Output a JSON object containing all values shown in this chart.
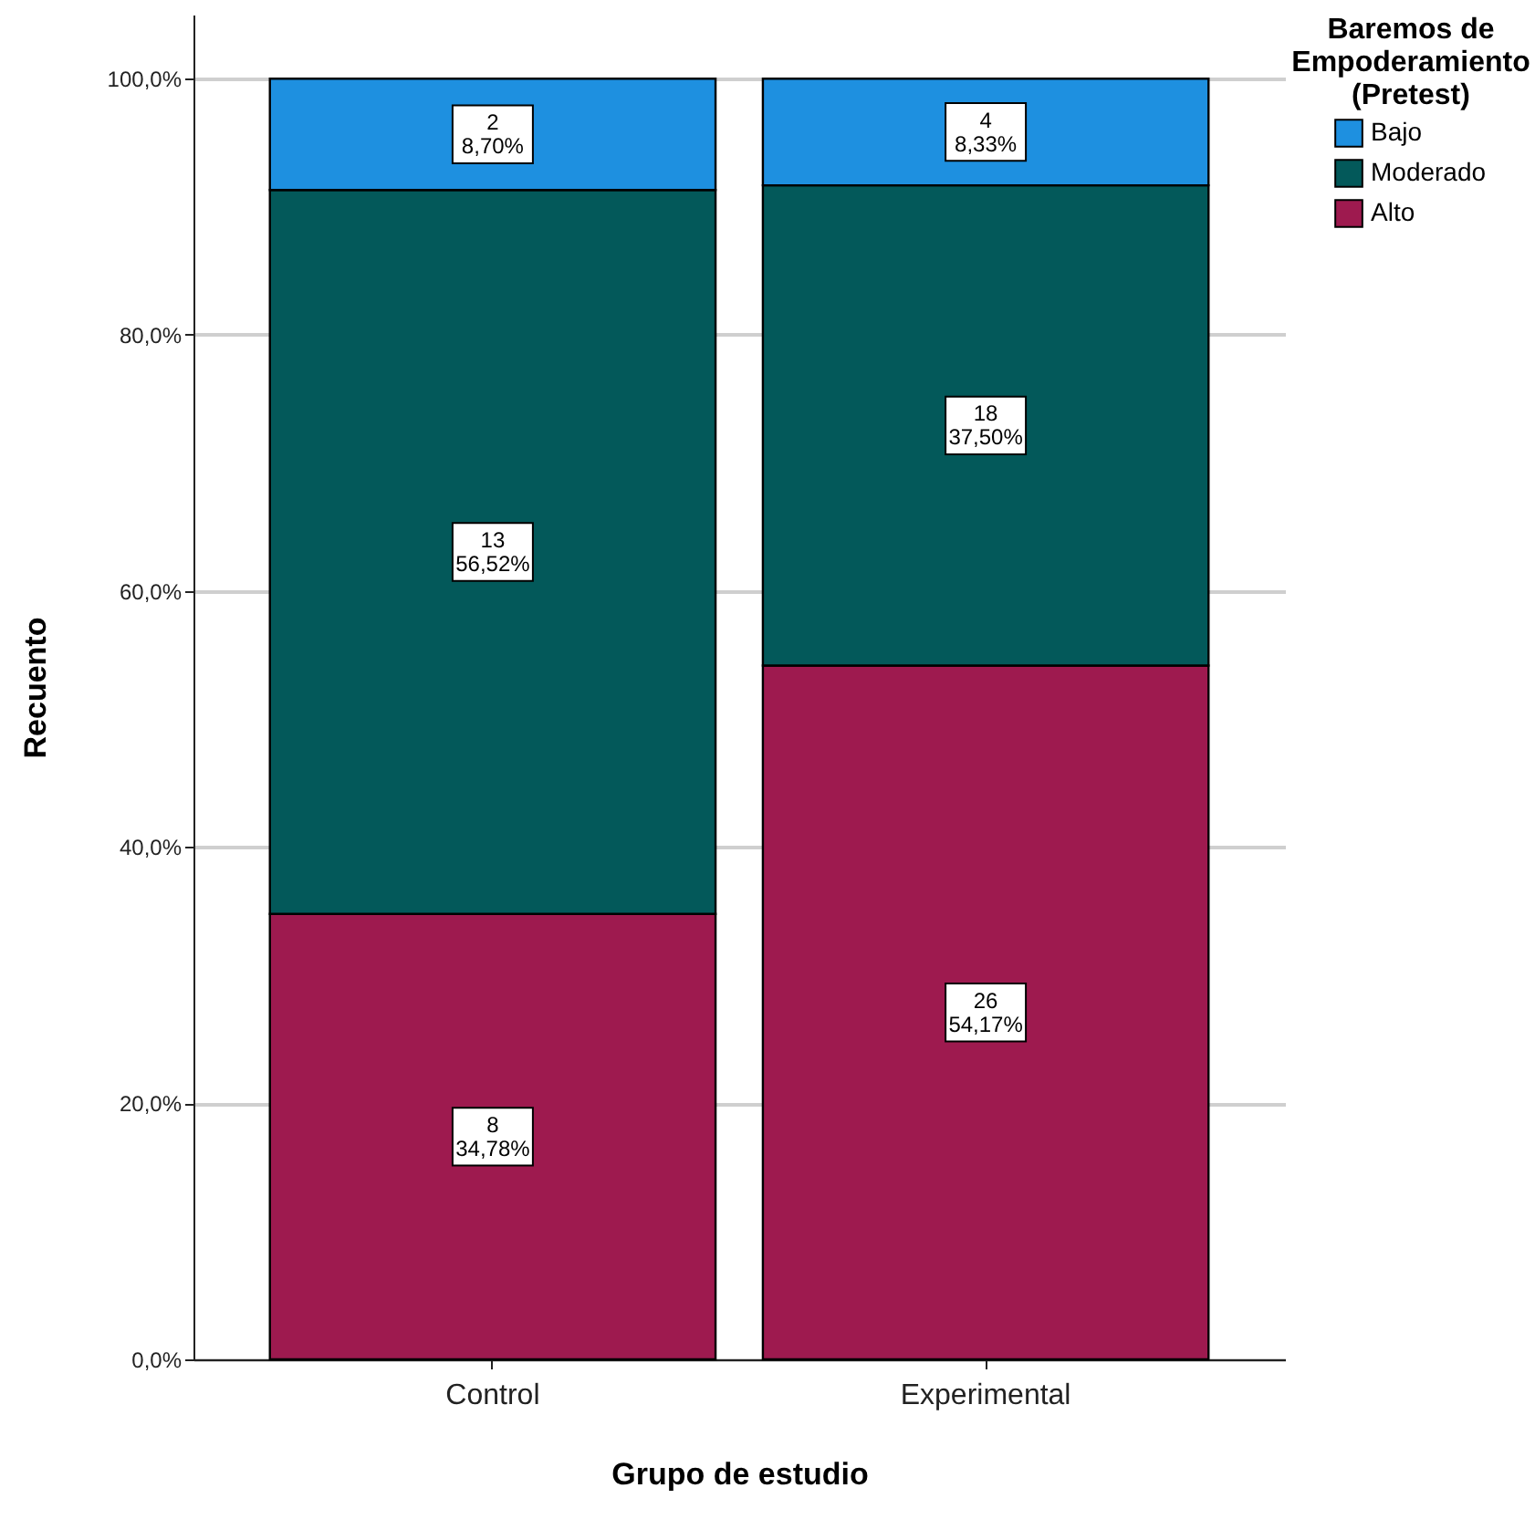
{
  "chart_data": {
    "type": "bar",
    "stacked": true,
    "categories": [
      "Control",
      "Experimental"
    ],
    "series": [
      {
        "name": "Alto",
        "color": "#9e1a4f",
        "values": [
          34.78,
          54.17
        ],
        "value_labels": [
          "8\n34,78%",
          "26\n54,17%"
        ]
      },
      {
        "name": "Moderado",
        "color": "#03595a",
        "values": [
          56.52,
          37.5
        ],
        "value_labels": [
          "13\n56,52%",
          "18\n37,50%"
        ]
      },
      {
        "name": "Bajo",
        "color": "#1e90e0",
        "values": [
          8.7,
          8.33
        ],
        "value_labels": [
          "2\n8,70%",
          "4\n8,33%"
        ]
      }
    ],
    "xlabel": "Grupo de estudio",
    "ylabel": "Recuento",
    "legend_title": "Baremos de Empoderamiento (Pretest)",
    "legend": "top right",
    "grid": "y",
    "ylim": [
      0,
      105
    ],
    "yticks": [
      {
        "value": 0,
        "label": "0,0%"
      },
      {
        "value": 20,
        "label": "20,0%"
      },
      {
        "value": 40,
        "label": "40,0%"
      },
      {
        "value": 60,
        "label": "60,0%"
      },
      {
        "value": 80,
        "label": "80,0%"
      },
      {
        "value": 100,
        "label": "100,0%"
      }
    ]
  }
}
